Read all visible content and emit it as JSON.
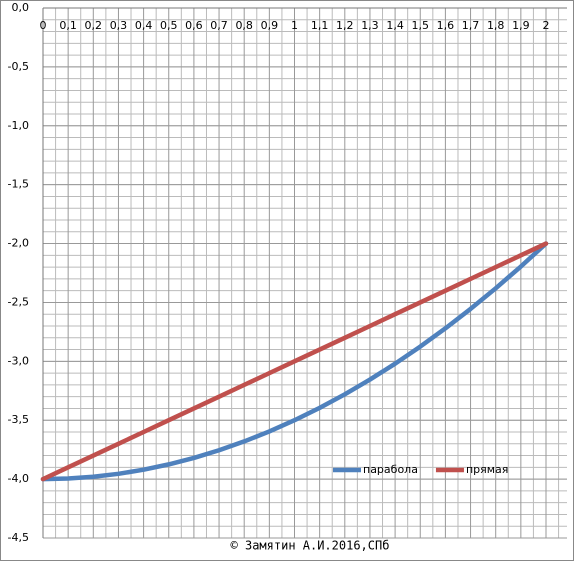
{
  "chart_data": {
    "type": "line",
    "annotation": "© Замятин А.И.2016,СПб",
    "x": [
      0,
      0.1,
      0.2,
      0.3,
      0.4,
      0.5,
      0.6,
      0.7,
      0.8,
      0.9,
      1,
      1.1,
      1.2,
      1.3,
      1.4,
      1.5,
      1.6,
      1.7,
      1.8,
      1.9,
      2
    ],
    "series": [
      {
        "name": "парабола",
        "color": "#4f81bd",
        "values": [
          -4,
          -3.995,
          -3.98,
          -3.955,
          -3.92,
          -3.875,
          -3.82,
          -3.755,
          -3.68,
          -3.595,
          -3.5,
          -3.395,
          -3.28,
          -3.155,
          -3.02,
          -2.875,
          -2.72,
          -2.555,
          -2.38,
          -2.195,
          -2
        ]
      },
      {
        "name": "прямая",
        "color": "#c0504d",
        "values": [
          -4,
          -3.9,
          -3.8,
          -3.7,
          -3.6,
          -3.5,
          -3.4,
          -3.3,
          -3.2,
          -3.1,
          -3,
          -2.9,
          -2.8,
          -2.7,
          -2.6,
          -2.5,
          -2.4,
          -2.3,
          -2.2,
          -2.1,
          -2
        ]
      }
    ],
    "xlim": [
      0,
      2
    ],
    "ylim": [
      -4.5,
      0
    ],
    "xticks": [
      0,
      {
        "value": 0.1,
        "label": "0,1"
      },
      {
        "value": 0.2,
        "label": "0,2"
      },
      {
        "value": 0.3,
        "label": "0,3"
      },
      {
        "value": 0.4,
        "label": "0,4"
      },
      {
        "value": 0.5,
        "label": "0,5"
      },
      {
        "value": 0.6,
        "label": "0,6"
      },
      {
        "value": 0.7,
        "label": "0,7"
      },
      {
        "value": 0.8,
        "label": "0,8"
      },
      {
        "value": 0.9,
        "label": "0,9"
      },
      1,
      {
        "value": 1.1,
        "label": "1,1"
      },
      {
        "value": 1.2,
        "label": "1,2"
      },
      {
        "value": 1.3,
        "label": "1,3"
      },
      {
        "value": 1.4,
        "label": "1,4"
      },
      {
        "value": 1.5,
        "label": "1,5"
      },
      {
        "value": 1.6,
        "label": "1,6"
      },
      {
        "value": 1.7,
        "label": "1,7"
      },
      {
        "value": 1.8,
        "label": "1,8"
      },
      {
        "value": 1.9,
        "label": "1,9"
      },
      2
    ],
    "yticks": [
      {
        "value": 0,
        "label": "0,0"
      },
      {
        "value": -0.5,
        "label": "-0,5"
      },
      {
        "value": -1,
        "label": "-1,0"
      },
      {
        "value": -1.5,
        "label": "-1,5"
      },
      {
        "value": -2,
        "label": "-2,0"
      },
      {
        "value": -2.5,
        "label": "-2,5"
      },
      {
        "value": -3,
        "label": "-3,0"
      },
      {
        "value": -3.5,
        "label": "-3,5"
      },
      {
        "value": -4,
        "label": "-4,0"
      },
      {
        "value": -4.5,
        "label": "-4,5"
      }
    ],
    "grid": true,
    "legend": "lower-right"
  }
}
